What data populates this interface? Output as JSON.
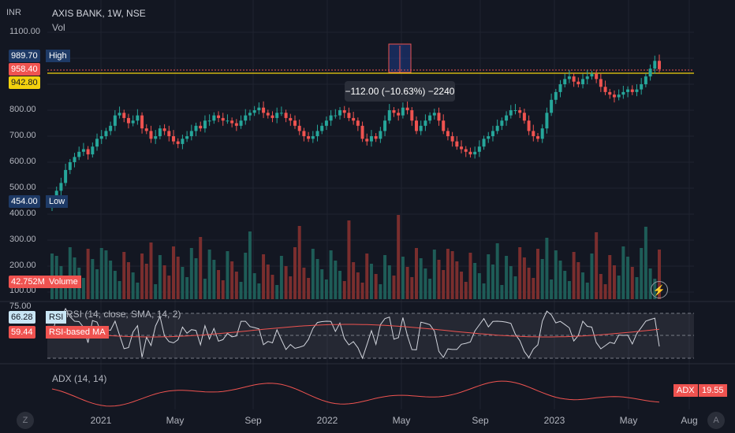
{
  "header": {
    "currency": "INR",
    "symbol_line": "AXIS BANK, 1W, NSE",
    "vol_label": "Vol"
  },
  "price_axis": [
    "1100.00",
    "800.00",
    "700.00",
    "600.00",
    "500.00",
    "400.00",
    "300.00",
    "200.00",
    "100.00",
    "75.00"
  ],
  "markers": {
    "high": {
      "value": "989.70",
      "label": "High"
    },
    "current": {
      "value": "958.40"
    },
    "yellow": {
      "value": "942.80"
    },
    "low": {
      "value": "454.00",
      "label": "Low"
    },
    "volume": {
      "value": "42.752M",
      "label": "Volume"
    },
    "rsi": {
      "value": "66.28",
      "label": "RSI"
    },
    "rsi_ma": {
      "value": "59.44",
      "label": "RSI-based MA"
    },
    "adx": {
      "value": "19.55",
      "label": "ADX"
    }
  },
  "rsi_title": "RSI (14, close, SMA, 14, 2)",
  "adx_title": "ADX (14, 14)",
  "measure_tooltip": "−112.00 (−10.63%) −2240",
  "x_axis": [
    "2021",
    "May",
    "Sep",
    "2022",
    "May",
    "Sep",
    "2023",
    "May",
    "Aug"
  ],
  "corner_buttons": {
    "left": "Z",
    "right": "A"
  },
  "colors": {
    "background": "#131722",
    "up": "#26a69a",
    "down": "#ef5350",
    "vol_up": "#1e5c57",
    "vol_down": "#7a2e2e",
    "rsi": "#d1d4dc",
    "rsi_ma": "#ef5350",
    "adx": "#ef5350",
    "yellow": "#f2d10e",
    "high_bg": "#1e3a66",
    "grid": "#1f2330"
  },
  "chart_data": {
    "type": "candlestick",
    "series_close": [
      454,
      490,
      520,
      570,
      600,
      620,
      640,
      650,
      630,
      660,
      690,
      700,
      720,
      740,
      780,
      790,
      770,
      750,
      760,
      780,
      730,
      720,
      690,
      700,
      730,
      720,
      700,
      680,
      670,
      690,
      700,
      720,
      740,
      730,
      760,
      760,
      780,
      770,
      760,
      760,
      750,
      740,
      760,
      780,
      790,
      800,
      810,
      790,
      780,
      770,
      790,
      790,
      770,
      760,
      740,
      720,
      700,
      690,
      700,
      720,
      740,
      760,
      780,
      780,
      800,
      790,
      770,
      760,
      740,
      690,
      680,
      700,
      690,
      720,
      760,
      800,
      790,
      780,
      810,
      800,
      760,
      720,
      740,
      760,
      780,
      790,
      760,
      720,
      700,
      680,
      660,
      650,
      640,
      630,
      640,
      660,
      690,
      700,
      720,
      740,
      760,
      780,
      800,
      800,
      790,
      760,
      720,
      700,
      690,
      730,
      790,
      840,
      870,
      900,
      920,
      930,
      910,
      900,
      920,
      930,
      940,
      920,
      890,
      870,
      860,
      850,
      860,
      870,
      880,
      870,
      880,
      900,
      930,
      960,
      990,
      958
    ]
  }
}
